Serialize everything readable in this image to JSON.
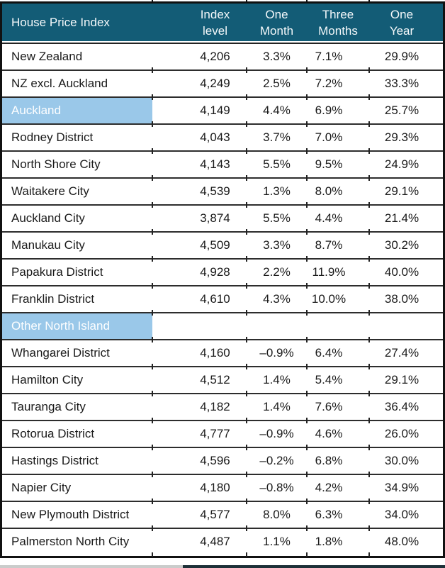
{
  "chart_data": {
    "type": "table",
    "title": "House Price Index",
    "columns": [
      "Index\nlevel",
      "One\nMonth",
      "Three\nMonths",
      "One\nYear"
    ],
    "rows": [
      {
        "name": "New Zealand",
        "index_level": "4,206",
        "one_month": "3.3%",
        "three_months": "7.1%",
        "one_year": "29.9%",
        "highlight": false
      },
      {
        "name": "NZ excl. Auckland",
        "index_level": "4,249",
        "one_month": "2.5%",
        "three_months": "7.2%",
        "one_year": "33.3%",
        "highlight": false
      },
      {
        "name": "Auckland",
        "index_level": "4,149",
        "one_month": "4.4%",
        "three_months": "6.9%",
        "one_year": "25.7%",
        "highlight": true
      },
      {
        "name": "Rodney District",
        "index_level": "4,043",
        "one_month": "3.7%",
        "three_months": "7.0%",
        "one_year": "29.3%",
        "highlight": false
      },
      {
        "name": "North Shore City",
        "index_level": "4,143",
        "one_month": "5.5%",
        "three_months": "9.5%",
        "one_year": "24.9%",
        "highlight": false
      },
      {
        "name": "Waitakere City",
        "index_level": "4,539",
        "one_month": "1.3%",
        "three_months": "8.0%",
        "one_year": "29.1%",
        "highlight": false
      },
      {
        "name": "Auckland City",
        "index_level": "3,874",
        "one_month": "5.5%",
        "three_months": "4.4%",
        "one_year": "21.4%",
        "highlight": false
      },
      {
        "name": "Manukau City",
        "index_level": "4,509",
        "one_month": "3.3%",
        "three_months": "8.7%",
        "one_year": "30.2%",
        "highlight": false
      },
      {
        "name": "Papakura District",
        "index_level": "4,928",
        "one_month": "2.2%",
        "three_months": "11.9%",
        "one_year": "40.0%",
        "highlight": false
      },
      {
        "name": "Franklin District",
        "index_level": "4,610",
        "one_month": "4.3%",
        "three_months": "10.0%",
        "one_year": "38.0%",
        "highlight": false
      },
      {
        "name": "Other North Island",
        "index_level": "",
        "one_month": "",
        "three_months": "",
        "one_year": "",
        "highlight": true
      },
      {
        "name": "Whangarei District",
        "index_level": "4,160",
        "one_month": "–0.9%",
        "three_months": "6.4%",
        "one_year": "27.4%",
        "highlight": false
      },
      {
        "name": "Hamilton City",
        "index_level": "4,512",
        "one_month": "1.4%",
        "three_months": "5.4%",
        "one_year": "29.1%",
        "highlight": false
      },
      {
        "name": "Tauranga City",
        "index_level": "4,182",
        "one_month": "1.4%",
        "three_months": "7.6%",
        "one_year": "36.4%",
        "highlight": false
      },
      {
        "name": "Rotorua District",
        "index_level": "4,777",
        "one_month": "–0.9%",
        "three_months": "4.6%",
        "one_year": "26.0%",
        "highlight": false
      },
      {
        "name": "Hastings District",
        "index_level": "4,596",
        "one_month": "–0.2%",
        "three_months": "6.8%",
        "one_year": "30.0%",
        "highlight": false
      },
      {
        "name": "Napier City",
        "index_level": "4,180",
        "one_month": "–0.8%",
        "three_months": "4.2%",
        "one_year": "34.9%",
        "highlight": false
      },
      {
        "name": "New Plymouth District",
        "index_level": "4,577",
        "one_month": "8.0%",
        "three_months": "6.3%",
        "one_year": "34.0%",
        "highlight": false
      },
      {
        "name": "Palmerston North City",
        "index_level": "4,487",
        "one_month": "1.1%",
        "three_months": "1.8%",
        "one_year": "48.0%",
        "highlight": false
      }
    ]
  },
  "colors": {
    "header_bg": "#135C76",
    "header_text": "#F4F8FA",
    "highlight_bg": "#9AC8E9",
    "highlight_text": "#FDFEFF",
    "body_text": "#1A1A1A",
    "border": "#111111",
    "row_separator": "#2D2D2D",
    "strip_gray": "#CACCCB",
    "strip_dark": "#1D3038"
  }
}
